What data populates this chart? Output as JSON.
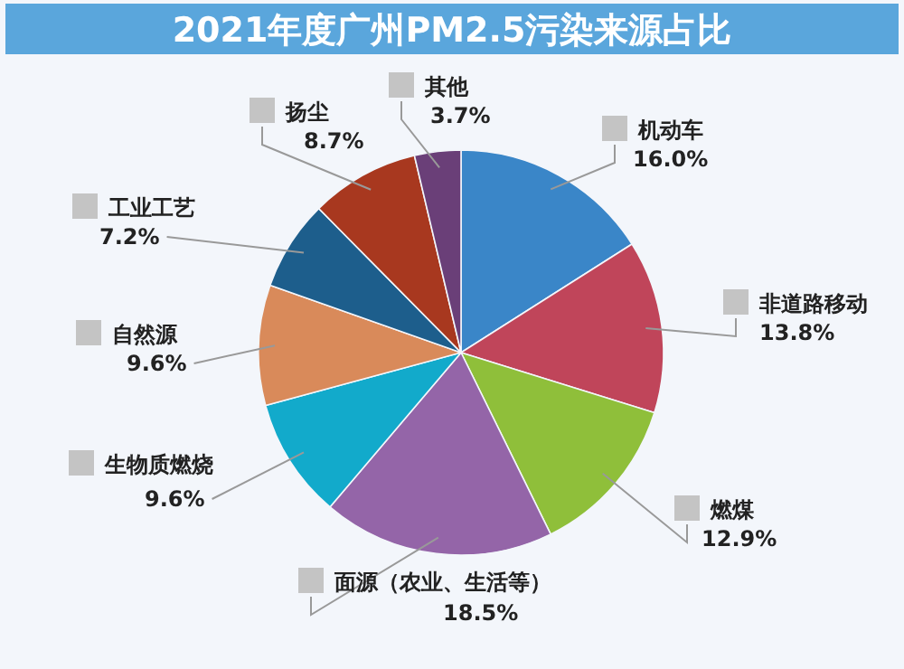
{
  "chart_data": {
    "type": "pie",
    "title": "2021年度广州PM2.5污染来源占比",
    "categories": [
      "机动车",
      "非道路移动",
      "燃煤",
      "面源（农业、生活等）",
      "生物质燃烧",
      "自然源",
      "工业工艺",
      "扬尘",
      "其他"
    ],
    "values": [
      16.0,
      13.8,
      12.9,
      18.5,
      9.6,
      9.6,
      7.2,
      8.7,
      3.7
    ],
    "value_labels": [
      "16.0%",
      "13.8%",
      "12.9%",
      "18.5%",
      "9.6%",
      "9.6%",
      "7.2%",
      "8.7%",
      "3.7%"
    ],
    "colors": [
      "#3a86c8",
      "#c0455a",
      "#8fbf3a",
      "#9465a8",
      "#12aacb",
      "#d98a5a",
      "#1d5e8c",
      "#a8381f",
      "#6a3f78"
    ]
  }
}
